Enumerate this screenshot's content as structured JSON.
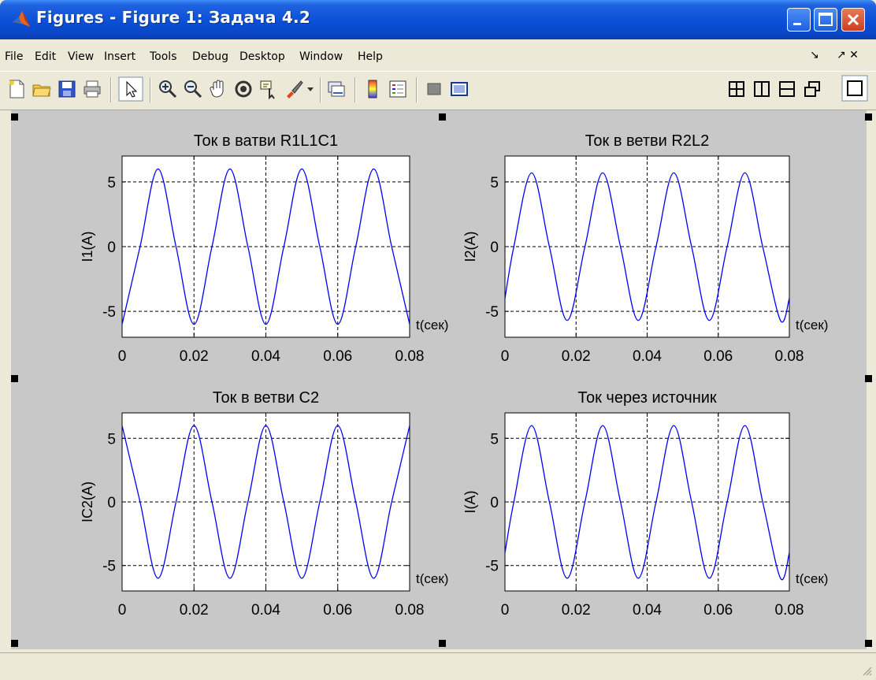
{
  "window": {
    "title": "Figures - Figure 1: Задача 4.2",
    "min_label": "minimize",
    "max_label": "maximize",
    "close_label": "close"
  },
  "menu": {
    "items": [
      "File",
      "Edit",
      "View",
      "Insert",
      "Tools",
      "Debug",
      "Desktop",
      "Window",
      "Help"
    ],
    "dock_label": "↘",
    "undock_label": "↗ ✕"
  },
  "toolbar": {
    "icons": [
      "new-figure-icon",
      "open-file-icon",
      "save-icon",
      "print-icon",
      "edit-plot-icon",
      "zoom-in-icon",
      "zoom-out-icon",
      "pan-icon",
      "rotate-3d-icon",
      "data-cursor-icon",
      "brush-icon",
      "link-plot-icon",
      "colorbar-icon",
      "legend-icon",
      "hide-tools-icon",
      "show-tools-icon",
      "tile-grid-icon",
      "tile-columns-icon",
      "tile-rows-icon",
      "float-icon",
      "maximize-icon"
    ]
  },
  "chart_data": [
    {
      "type": "line",
      "title": "Ток в ватви R1L1C1",
      "xlabel": "t(сек)",
      "ylabel": "I1(A)",
      "xlim": [
        0,
        0.08
      ],
      "ylim": [
        -7,
        7
      ],
      "xticks": [
        "0",
        "0.02",
        "0.04",
        "0.06",
        "0.08"
      ],
      "yticks": [
        "5",
        "0",
        "-5"
      ],
      "grid": true,
      "color": "#0000ff",
      "series": [
        {
          "x": [
            0,
            0.005,
            0.01,
            0.015,
            0.02,
            0.025,
            0.03,
            0.035,
            0.04,
            0.045,
            0.05,
            0.055,
            0.06,
            0.065,
            0.07,
            0.075,
            0.08
          ],
          "y": [
            -6,
            0,
            6,
            0,
            -6,
            0,
            6,
            0,
            -6,
            0,
            6,
            0,
            -6,
            0,
            6,
            0,
            -6
          ]
        }
      ]
    },
    {
      "type": "line",
      "title": "Ток в ветви R2L2",
      "xlabel": "t(сек)",
      "ylabel": "I2(A)",
      "xlim": [
        0,
        0.08
      ],
      "ylim": [
        -7,
        7
      ],
      "xticks": [
        "0",
        "0.02",
        "0.04",
        "0.06",
        "0.08"
      ],
      "yticks": [
        "5",
        "0",
        "-5"
      ],
      "grid": true,
      "color": "#0000ff",
      "series": [
        {
          "x": [
            0,
            0.0025,
            0.0075,
            0.0125,
            0.0175,
            0.0225,
            0.0275,
            0.0325,
            0.0375,
            0.0425,
            0.0475,
            0.0525,
            0.0575,
            0.0625,
            0.0675,
            0.0725,
            0.0775,
            0.08
          ],
          "y": [
            -4,
            0,
            5.7,
            0,
            -5.7,
            0,
            5.7,
            0,
            -5.7,
            0,
            5.7,
            0,
            -5.7,
            0,
            5.7,
            0,
            -5.7,
            -4
          ]
        }
      ]
    },
    {
      "type": "line",
      "title": "Ток в ветви C2",
      "xlabel": "t(сек)",
      "ylabel": "IC2(A)",
      "xlim": [
        0,
        0.08
      ],
      "ylim": [
        -7,
        7
      ],
      "xticks": [
        "0",
        "0.02",
        "0.04",
        "0.06",
        "0.08"
      ],
      "yticks": [
        "5",
        "0",
        "-5"
      ],
      "grid": true,
      "color": "#0000ff",
      "series": [
        {
          "x": [
            0,
            0.005,
            0.01,
            0.015,
            0.02,
            0.025,
            0.03,
            0.035,
            0.04,
            0.045,
            0.05,
            0.055,
            0.06,
            0.065,
            0.07,
            0.075,
            0.08
          ],
          "y": [
            6,
            0,
            -6,
            0,
            6,
            0,
            -6,
            0,
            6,
            0,
            -6,
            0,
            6,
            0,
            -6,
            0,
            6
          ]
        }
      ]
    },
    {
      "type": "line",
      "title": "Ток через источник",
      "xlabel": "t(сек)",
      "ylabel": "I(A)",
      "xlim": [
        0,
        0.08
      ],
      "ylim": [
        -7,
        7
      ],
      "xticks": [
        "0",
        "0.02",
        "0.04",
        "0.06",
        "0.08"
      ],
      "yticks": [
        "5",
        "0",
        "-5"
      ],
      "grid": true,
      "color": "#0000ff",
      "series": [
        {
          "x": [
            0,
            0.0025,
            0.0075,
            0.0125,
            0.0175,
            0.0225,
            0.0275,
            0.0325,
            0.0375,
            0.0425,
            0.0475,
            0.0525,
            0.0575,
            0.0625,
            0.0675,
            0.0725,
            0.0775,
            0.08
          ],
          "y": [
            -4,
            0,
            6,
            0,
            -6,
            0,
            6,
            0,
            -6,
            0,
            6,
            0,
            -6,
            0,
            6,
            0,
            -6,
            -4
          ]
        }
      ]
    }
  ]
}
